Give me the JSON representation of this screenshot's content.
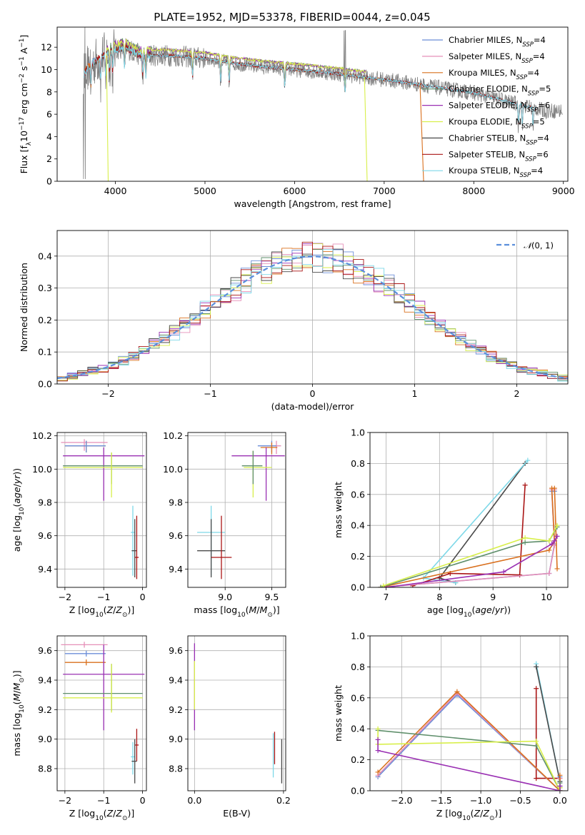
{
  "colors": {
    "chabrier_miles": "#6b8ed8",
    "salpeter_miles": "#e58fb8",
    "kroupa_miles": "#d9701e",
    "chabrier_elodie": "#5f8f6b",
    "salpeter_elodie": "#9a30b3",
    "kroupa_elodie": "#d8ef4a",
    "chabrier_stelib": "#4a4a4a",
    "salpeter_stelib": "#aa1515",
    "kroupa_stelib": "#7dd8e8",
    "data": "#808080",
    "gauss": "#5b8fdc",
    "grid": "#b0b0b0"
  },
  "chart_data": [
    {
      "id": "spectrum",
      "type": "line",
      "title": "PLATE=1952, MJD=53378, FIBERID=0044, z=0.045",
      "xlabel": "wavelength [Angstrom, rest frame]",
      "ylabel": "Flux [f",
      "xlim": [
        3350,
        9050
      ],
      "ylim": [
        0,
        13.8
      ],
      "xticks": [
        4000,
        5000,
        6000,
        7000,
        8000,
        9000
      ],
      "yticks": [
        0,
        2,
        4,
        6,
        8,
        10,
        12
      ],
      "legend_position": "top-right",
      "legend": [
        {
          "base": "Chabrier MILES, N",
          "sub": "SSP",
          "tail": "=4",
          "color": "chabrier_miles"
        },
        {
          "base": "Salpeter MILES, N",
          "sub": "SSP",
          "tail": "=4",
          "color": "salpeter_miles"
        },
        {
          "base": "Kroupa MILES, N",
          "sub": "SSP",
          "tail": "=4",
          "color": "kroupa_miles"
        },
        {
          "base": "Chabrier ELODIE, N",
          "sub": "SSP",
          "tail": "=5",
          "color": "chabrier_elodie"
        },
        {
          "base": "Salpeter ELODIE, N",
          "sub": "SSP",
          "tail": "=6",
          "color": "salpeter_elodie"
        },
        {
          "base": "Kroupa ELODIE, N",
          "sub": "SSP",
          "tail": "=5",
          "color": "kroupa_elodie"
        },
        {
          "base": "Chabrier STELIB, N",
          "sub": "SSP",
          "tail": "=4",
          "color": "chabrier_stelib"
        },
        {
          "base": "Salpeter STELIB, N",
          "sub": "SSP",
          "tail": "=6",
          "color": "salpeter_stelib"
        },
        {
          "base": "Kroupa STELIB, N",
          "sub": "SSP",
          "tail": "=4",
          "color": "kroupa_stelib"
        }
      ],
      "continuum": {
        "x": [
          3650,
          3700,
          3800,
          3900,
          4000,
          4100,
          4200,
          4300,
          4500,
          4700,
          5000,
          5300,
          5600,
          6000,
          6400,
          6800,
          7200,
          7600,
          8000,
          8400,
          8800
        ],
        "y": [
          9.6,
          10.3,
          10.9,
          11.4,
          11.8,
          12.0,
          11.6,
          11.2,
          11.3,
          11.2,
          11.0,
          10.6,
          10.3,
          10.0,
          9.7,
          9.3,
          8.9,
          8.4,
          7.9,
          7.1,
          6.3
        ]
      },
      "cutoffs": [
        {
          "model": "kroupa_elodie",
          "x": [
            6780,
            6810
          ],
          "y_end": 0
        },
        {
          "model": "kroupa_miles",
          "x": [
            7400,
            7440
          ],
          "y_end": 0
        },
        {
          "model": "kroupa_elodie",
          "x": [
            3900,
            3920
          ],
          "y_end": 0
        }
      ]
    },
    {
      "id": "residuals",
      "type": "histogram",
      "xlabel": "(data-model)/error",
      "ylabel": "Normed distribution",
      "xlim": [
        -2.5,
        2.5
      ],
      "ylim": [
        0,
        0.48
      ],
      "xticks": [
        -2,
        -1,
        0,
        1,
        2
      ],
      "yticks": [
        0.0,
        0.1,
        0.2,
        0.3,
        0.4
      ],
      "bin_width": 0.1,
      "legend": [
        {
          "label": "N(0,1)",
          "style": "dashed",
          "color": "gauss"
        }
      ],
      "legend_position": "top-right"
    },
    {
      "id": "age-vs-z",
      "type": "errorbar",
      "xlabel": "Z [log",
      "ylabel": "age  [log",
      "xlim": [
        -2.2,
        0.1
      ],
      "ylim": [
        9.29,
        10.22
      ],
      "xticks": [
        -2,
        -1,
        0
      ],
      "yticks": [
        9.4,
        9.6,
        9.8,
        10.0,
        10.2
      ],
      "points": [
        {
          "color": "salpeter_miles",
          "x": -1.5,
          "xerr": [
            0.6,
            0.6
          ],
          "y": 10.16,
          "yerr": [
            0.05,
            0.02
          ]
        },
        {
          "color": "kroupa_miles",
          "x": -1.45,
          "xerr": [
            0.55,
            0.5
          ],
          "y": 10.14,
          "yerr": [
            0.04,
            0.03
          ]
        },
        {
          "color": "chabrier_miles",
          "x": -1.45,
          "xerr": [
            0.55,
            0.5
          ],
          "y": 10.14,
          "yerr": [
            0.04,
            0.03
          ]
        },
        {
          "color": "salpeter_elodie",
          "x": -1.0,
          "xerr": [
            1.05,
            1.05
          ],
          "y": 10.08,
          "yerr": [
            0.27,
            0.05
          ]
        },
        {
          "color": "chabrier_elodie",
          "x": -0.8,
          "xerr": [
            1.25,
            0.8
          ],
          "y": 10.02,
          "yerr": [
            0.11,
            0.08
          ]
        },
        {
          "color": "kroupa_elodie",
          "x": -0.8,
          "xerr": [
            1.25,
            0.8
          ],
          "y": 10.01,
          "yerr": [
            0.18,
            0.09
          ]
        },
        {
          "color": "kroupa_stelib",
          "x": -0.25,
          "xerr": [
            0.05,
            0.05
          ],
          "y": 9.62,
          "yerr": [
            0.26,
            0.16
          ]
        },
        {
          "color": "chabrier_stelib",
          "x": -0.2,
          "xerr": [
            0.08,
            0.05
          ],
          "y": 9.51,
          "yerr": [
            0.16,
            0.19
          ]
        },
        {
          "color": "salpeter_stelib",
          "x": -0.15,
          "xerr": [
            0.05,
            0.05
          ],
          "y": 9.47,
          "yerr": [
            0.13,
            0.25
          ]
        }
      ]
    },
    {
      "id": "age-vs-mass",
      "type": "errorbar",
      "xlabel": "mass [log",
      "ylabel": "",
      "xlim": [
        8.6,
        9.65
      ],
      "ylim": [
        9.29,
        10.22
      ],
      "xticks": [
        9.0,
        9.5
      ],
      "yticks": [
        9.4,
        9.6,
        9.8,
        10.0,
        10.2
      ],
      "points": [
        {
          "color": "salpeter_miles",
          "x": 9.55,
          "xerr": [
            0.15,
            0.05
          ],
          "y": 10.14,
          "yerr": [
            0.05,
            0.03
          ]
        },
        {
          "color": "chabrier_miles",
          "x": 9.5,
          "xerr": [
            0.15,
            0.05
          ],
          "y": 10.14,
          "yerr": [
            0.04,
            0.03
          ]
        },
        {
          "color": "kroupa_miles",
          "x": 9.5,
          "xerr": [
            0.12,
            0.06
          ],
          "y": 10.13,
          "yerr": [
            0.04,
            0.03
          ]
        },
        {
          "color": "salpeter_elodie",
          "x": 9.44,
          "xerr": [
            0.37,
            0.2
          ],
          "y": 10.08,
          "yerr": [
            0.27,
            0.05
          ]
        },
        {
          "color": "kroupa_elodie",
          "x": 9.3,
          "xerr": [
            0.1,
            0.2
          ],
          "y": 10.01,
          "yerr": [
            0.18,
            0.1
          ]
        },
        {
          "color": "chabrier_elodie",
          "x": 9.3,
          "xerr": [
            0.12,
            0.1
          ],
          "y": 10.02,
          "yerr": [
            0.11,
            0.09
          ]
        },
        {
          "color": "kroupa_stelib",
          "x": 8.85,
          "xerr": [
            0.15,
            0.15
          ],
          "y": 9.62,
          "yerr": [
            0.26,
            0.16
          ]
        },
        {
          "color": "chabrier_stelib",
          "x": 8.85,
          "xerr": [
            0.15,
            0.15
          ],
          "y": 9.51,
          "yerr": [
            0.16,
            0.19
          ]
        },
        {
          "color": "salpeter_stelib",
          "x": 8.96,
          "xerr": [
            0.11,
            0.11
          ],
          "y": 9.47,
          "yerr": [
            0.13,
            0.25
          ]
        }
      ]
    },
    {
      "id": "weight-vs-age",
      "type": "line",
      "xlabel": "age  [log",
      "ylabel": "mass weight",
      "xlim": [
        6.7,
        10.4
      ],
      "ylim": [
        0,
        1.0
      ],
      "xticks": [
        7,
        8,
        9,
        10
      ],
      "yticks": [
        0.0,
        0.2,
        0.4,
        0.6,
        0.8,
        1.0
      ],
      "series": [
        {
          "color": "chabrier_stelib",
          "x": [
            8.3,
            8.0,
            9.6
          ],
          "y": [
            0.03,
            0.06,
            0.8
          ]
        },
        {
          "color": "kroupa_stelib",
          "x": [
            8.3,
            7.7,
            9.65
          ],
          "y": [
            0.03,
            0.06,
            0.82
          ]
        },
        {
          "color": "salpeter_stelib",
          "x": [
            7.5,
            8.2,
            9.5,
            9.6
          ],
          "y": [
            0.01,
            0.09,
            0.08,
            0.66
          ]
        },
        {
          "color": "chabrier_miles",
          "x": [
            6.9,
            10.05,
            10.15,
            10.1,
            10.15
          ],
          "y": [
            0.0,
            0.09,
            0.28,
            0.62,
            0.62
          ]
        },
        {
          "color": "salpeter_miles",
          "x": [
            6.9,
            10.05,
            10.15,
            10.1,
            10.15
          ],
          "y": [
            0.0,
            0.09,
            0.27,
            0.63,
            0.63
          ]
        },
        {
          "color": "kroupa_miles",
          "x": [
            6.9,
            10.05,
            10.15,
            10.1,
            10.15,
            10.2
          ],
          "y": [
            0.0,
            0.24,
            0.3,
            0.64,
            0.64,
            0.12
          ]
        },
        {
          "color": "chabrier_elodie",
          "x": [
            6.9,
            9.6,
            10.05,
            10.2
          ],
          "y": [
            0.0,
            0.29,
            0.3,
            0.39
          ]
        },
        {
          "color": "salpeter_elodie",
          "x": [
            7.0,
            9.2,
            10.1,
            10.15,
            10.2
          ],
          "y": [
            0.0,
            0.1,
            0.28,
            0.3,
            0.33
          ]
        },
        {
          "color": "kroupa_elodie",
          "x": [
            6.95,
            9.6,
            10.05,
            10.2
          ],
          "y": [
            0.01,
            0.32,
            0.3,
            0.4
          ]
        }
      ]
    },
    {
      "id": "mass-vs-z",
      "type": "errorbar",
      "xlabel": "Z [log",
      "ylabel": "mass [log",
      "xlim": [
        -2.2,
        0.1
      ],
      "ylim": [
        8.65,
        9.7
      ],
      "xticks": [
        -2,
        -1,
        0
      ],
      "yticks": [
        8.8,
        9.0,
        9.2,
        9.4,
        9.6
      ],
      "points": [
        {
          "color": "salpeter_miles",
          "x": -1.5,
          "xerr": [
            0.6,
            0.6
          ],
          "y": 9.64,
          "yerr": [
            0.02,
            0.02
          ]
        },
        {
          "color": "chabrier_miles",
          "x": -1.45,
          "xerr": [
            0.55,
            0.5
          ],
          "y": 9.58,
          "yerr": [
            0.02,
            0.02
          ]
        },
        {
          "color": "kroupa_miles",
          "x": -1.45,
          "xerr": [
            0.55,
            0.5
          ],
          "y": 9.52,
          "yerr": [
            0.02,
            0.02
          ]
        },
        {
          "color": "salpeter_elodie",
          "x": -1.0,
          "xerr": [
            1.05,
            1.05
          ],
          "y": 9.44,
          "yerr": [
            0.38,
            0.2
          ]
        },
        {
          "color": "chabrier_elodie",
          "x": -0.8,
          "xerr": [
            1.25,
            0.8
          ],
          "y": 9.31,
          "yerr": [
            0.12,
            0.2
          ]
        },
        {
          "color": "kroupa_elodie",
          "x": -0.8,
          "xerr": [
            1.25,
            0.8
          ],
          "y": 9.28,
          "yerr": [
            0.1,
            0.23
          ]
        },
        {
          "color": "salpeter_stelib",
          "x": -0.15,
          "xerr": [
            0.05,
            0.05
          ],
          "y": 8.96,
          "yerr": [
            0.11,
            0.11
          ]
        },
        {
          "color": "kroupa_stelib",
          "x": -0.25,
          "xerr": [
            0.05,
            0.05
          ],
          "y": 8.88,
          "yerr": [
            0.12,
            0.1
          ]
        },
        {
          "color": "chabrier_stelib",
          "x": -0.2,
          "xerr": [
            0.08,
            0.05
          ],
          "y": 8.85,
          "yerr": [
            0.15,
            0.15
          ]
        }
      ]
    },
    {
      "id": "mass-vs-ebv",
      "type": "errorbar",
      "xlabel": "E(B-V)",
      "ylabel": "",
      "xlim": [
        -0.015,
        0.205
      ],
      "ylim": [
        8.65,
        9.7
      ],
      "xticks": [
        0.0,
        0.2
      ],
      "xticklabels": [
        "0.0",
        "0.2"
      ],
      "yticks": [
        8.8,
        9.0,
        9.2,
        9.4,
        9.6
      ],
      "points": [
        {
          "color": "salpeter_elodie",
          "x": 0.0,
          "xerr": [
            0.0,
            0.0
          ],
          "y": 9.4,
          "yerr": [
            0.34,
            0.25
          ]
        },
        {
          "color": "kroupa_elodie",
          "x": 0.0,
          "xerr": [
            0.0,
            0.0
          ],
          "y": 9.3,
          "yerr": [
            0.1,
            0.23
          ]
        },
        {
          "color": "salpeter_stelib",
          "x": 0.18,
          "xerr": [
            0.0,
            0.0
          ],
          "y": 8.95,
          "yerr": [
            0.12,
            0.1
          ]
        },
        {
          "color": "kroupa_stelib",
          "x": 0.177,
          "xerr": [
            0.0,
            0.0
          ],
          "y": 8.9,
          "yerr": [
            0.16,
            0.14
          ]
        },
        {
          "color": "chabrier_stelib",
          "x": 0.196,
          "xerr": [
            0.0,
            0.0
          ],
          "y": 8.85,
          "yerr": [
            0.15,
            0.15
          ]
        }
      ]
    },
    {
      "id": "weight-vs-z",
      "type": "line",
      "xlabel": "Z [log",
      "ylabel": "mass weight",
      "xlim": [
        -2.4,
        0.1
      ],
      "ylim": [
        0,
        1.0
      ],
      "xticks": [
        -2.0,
        -1.5,
        -1.0,
        -0.5,
        0.0
      ],
      "xticklabels": [
        "−2.0",
        "−1.5",
        "−1.0",
        "−0.5",
        "0.0"
      ],
      "yticks": [
        0.0,
        0.2,
        0.4,
        0.6,
        0.8,
        1.0
      ],
      "series": [
        {
          "color": "kroupa_stelib",
          "x": [
            -0.3,
            0.0,
            0.0
          ],
          "y": [
            0.82,
            0.06,
            0.02
          ]
        },
        {
          "color": "chabrier_stelib",
          "x": [
            -0.3,
            0.0,
            0.0
          ],
          "y": [
            0.8,
            0.06,
            0.03
          ]
        },
        {
          "color": "salpeter_stelib",
          "x": [
            -0.3,
            -0.3,
            0.0,
            0.0
          ],
          "y": [
            0.66,
            0.08,
            0.08,
            0.02
          ]
        },
        {
          "color": "chabrier_miles",
          "x": [
            -2.3,
            -1.3,
            0.0,
            0.0
          ],
          "y": [
            0.09,
            0.62,
            0.0,
            0.09
          ]
        },
        {
          "color": "salpeter_miles",
          "x": [
            -2.3,
            -1.3,
            0.0,
            0.0
          ],
          "y": [
            0.1,
            0.63,
            0.0,
            0.08
          ]
        },
        {
          "color": "kroupa_miles",
          "x": [
            -2.3,
            -1.3,
            0.0,
            0.0
          ],
          "y": [
            0.12,
            0.64,
            0.0,
            0.1
          ]
        },
        {
          "color": "chabrier_elodie",
          "x": [
            -2.3,
            -0.3,
            0.0,
            0.0
          ],
          "y": [
            0.39,
            0.29,
            0.0,
            0.05
          ]
        },
        {
          "color": "kroupa_elodie",
          "x": [
            -2.3,
            -2.3,
            -0.3,
            0.0,
            0.0
          ],
          "y": [
            0.4,
            0.3,
            0.32,
            0.0,
            0.02
          ]
        },
        {
          "color": "salpeter_elodie",
          "x": [
            -2.3,
            -2.3,
            0.0,
            0.0
          ],
          "y": [
            0.33,
            0.26,
            0.0,
            0.03
          ]
        }
      ]
    }
  ]
}
